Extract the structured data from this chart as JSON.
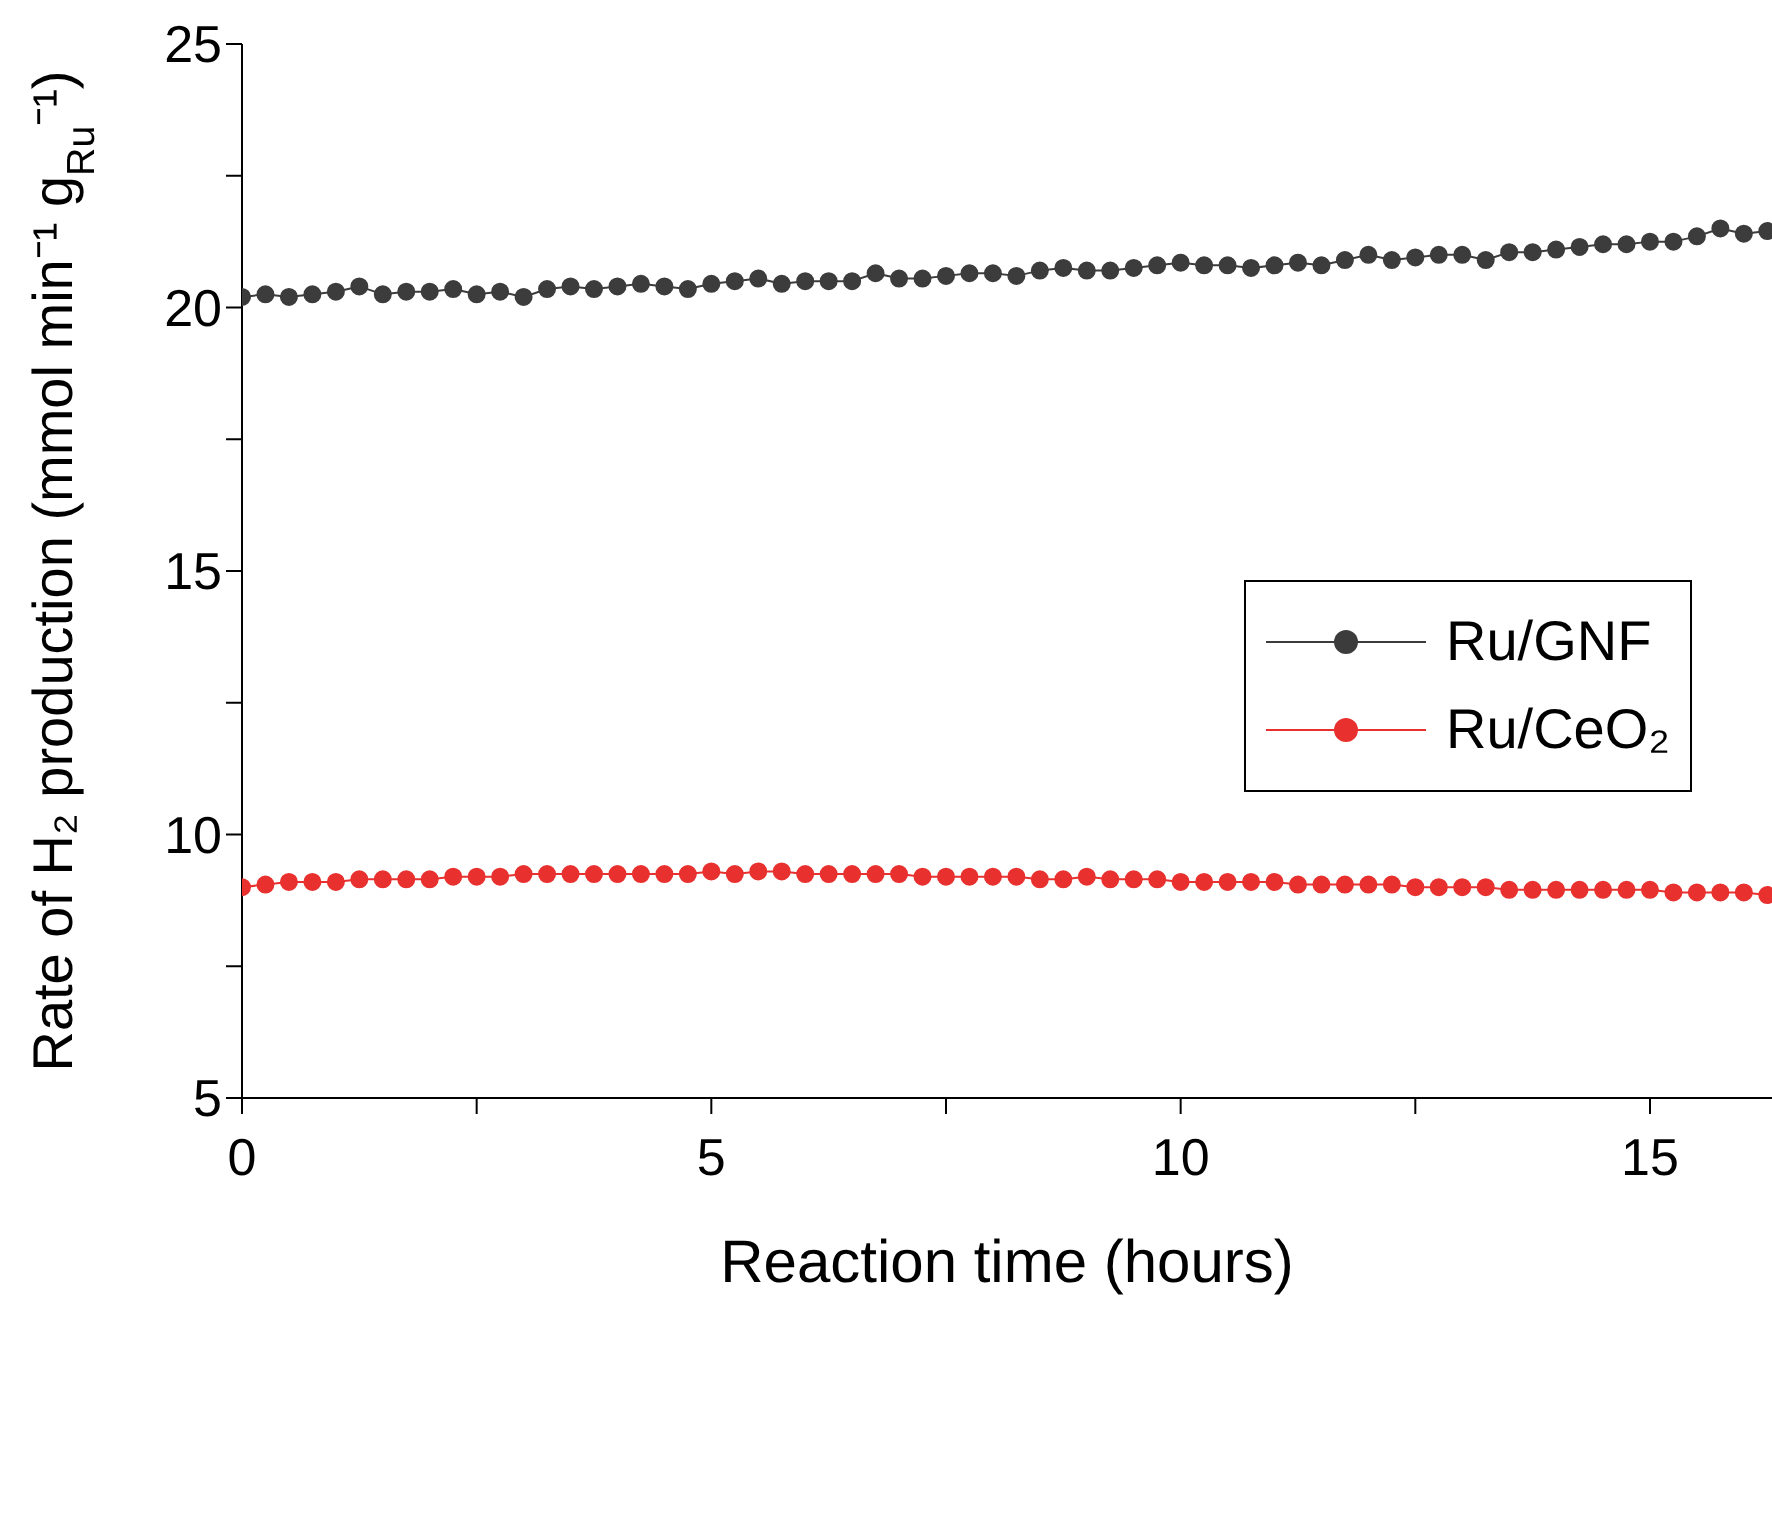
{
  "chart_data": {
    "type": "line",
    "xlabel": "Reaction time (hours)",
    "ylabel": "Rate of H₂ production (mmol min⁻¹ g$_{Ru}$⁻¹)",
    "x": [
      0,
      0.25,
      0.5,
      0.75,
      1,
      1.25,
      1.5,
      1.75,
      2,
      2.25,
      2.5,
      2.75,
      3,
      3.25,
      3.5,
      3.75,
      4,
      4.25,
      4.5,
      4.75,
      5,
      5.25,
      5.5,
      5.75,
      6,
      6.25,
      6.5,
      6.75,
      7,
      7.25,
      7.5,
      7.75,
      8,
      8.25,
      8.5,
      8.75,
      9,
      9.25,
      9.5,
      9.75,
      10,
      10.25,
      10.5,
      10.75,
      11,
      11.25,
      11.5,
      11.75,
      12,
      12.25,
      12.5,
      12.75,
      13,
      13.25,
      13.5,
      13.75,
      14,
      14.25,
      14.5,
      14.75,
      15,
      15.25,
      15.5,
      15.75,
      16,
      16.25
    ],
    "series": [
      {
        "name": "Ru/GNF",
        "color": "#3c3c3c",
        "values": [
          20.2,
          20.25,
          20.2,
          20.25,
          20.3,
          20.4,
          20.25,
          20.3,
          20.3,
          20.35,
          20.25,
          20.3,
          20.2,
          20.35,
          20.4,
          20.35,
          20.4,
          20.45,
          20.4,
          20.35,
          20.45,
          20.5,
          20.55,
          20.45,
          20.5,
          20.5,
          20.5,
          20.65,
          20.55,
          20.55,
          20.6,
          20.65,
          20.65,
          20.6,
          20.7,
          20.75,
          20.7,
          20.7,
          20.75,
          20.8,
          20.85,
          20.8,
          20.8,
          20.75,
          20.8,
          20.85,
          20.8,
          20.9,
          21.0,
          20.9,
          20.95,
          21.0,
          21.0,
          20.9,
          21.05,
          21.05,
          21.1,
          21.15,
          21.2,
          21.2,
          21.25,
          21.25,
          21.35,
          21.5,
          21.4,
          21.45
        ]
      },
      {
        "name": "Ru/CeO₂",
        "color": "#e8312f",
        "values": [
          9.0,
          9.05,
          9.1,
          9.1,
          9.1,
          9.15,
          9.15,
          9.15,
          9.15,
          9.2,
          9.2,
          9.2,
          9.25,
          9.25,
          9.25,
          9.25,
          9.25,
          9.25,
          9.25,
          9.25,
          9.3,
          9.25,
          9.3,
          9.3,
          9.25,
          9.25,
          9.25,
          9.25,
          9.25,
          9.2,
          9.2,
          9.2,
          9.2,
          9.2,
          9.15,
          9.15,
          9.2,
          9.15,
          9.15,
          9.15,
          9.1,
          9.1,
          9.1,
          9.1,
          9.1,
          9.05,
          9.05,
          9.05,
          9.05,
          9.05,
          9.0,
          9.0,
          9.0,
          9.0,
          8.95,
          8.95,
          8.95,
          8.95,
          8.95,
          8.95,
          8.95,
          8.9,
          8.9,
          8.9,
          8.9,
          8.85
        ]
      }
    ],
    "xlim": [
      0,
      16.3
    ],
    "xticks": [
      0,
      {
        "value": 2.5,
        "label": null
      },
      5,
      {
        "value": 7.5,
        "label": null
      },
      10,
      {
        "value": 12.5,
        "label": null
      },
      15
    ],
    "ylim": [
      5,
      25
    ],
    "yticks": [
      5,
      {
        "value": 7.5,
        "label": null
      },
      10,
      {
        "value": 12.5,
        "label": null
      },
      15,
      {
        "value": 17.5,
        "label": null
      },
      20,
      {
        "value": 22.5,
        "label": null
      },
      25
    ],
    "grid": false,
    "legend": "right",
    "marker": "circle",
    "line_style": "solid"
  }
}
